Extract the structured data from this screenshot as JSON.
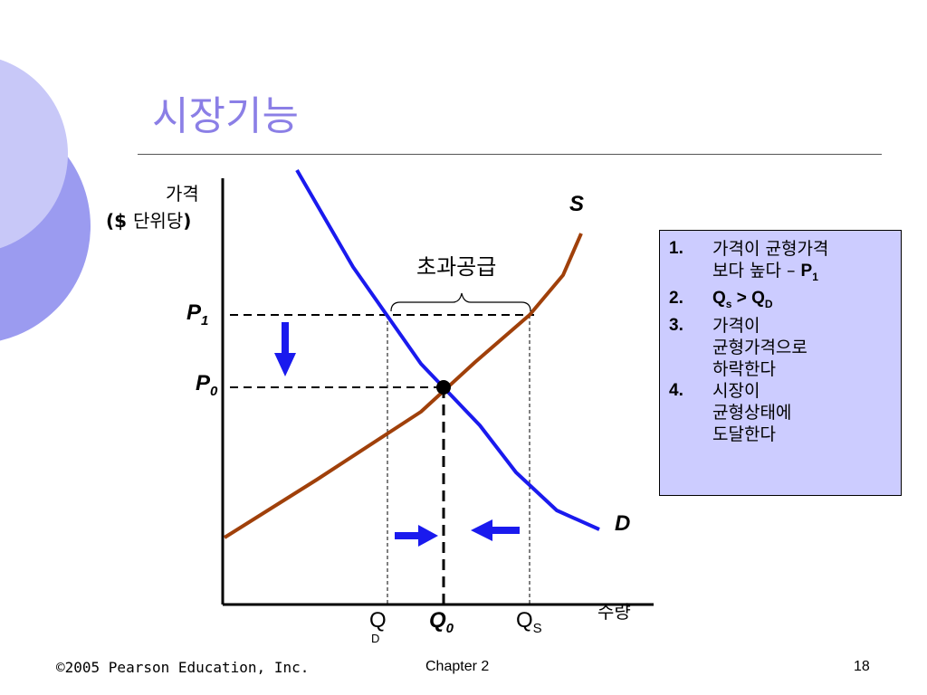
{
  "slide": {
    "title": "시장기능",
    "footer_left": "©2005 Pearson Education, Inc.",
    "footer_center": "Chapter 2",
    "footer_right": "18"
  },
  "diagram": {
    "y_axis_label_line1": "가격",
    "y_axis_label_open": "($ ",
    "y_axis_label_unit": "단위당",
    "y_axis_label_close": ")",
    "x_axis_label": "수량",
    "supply_label": "S",
    "demand_label": "D",
    "price_high_label": "P",
    "price_high_sub": "1",
    "price_eq_label": "P",
    "price_eq_sub": "0",
    "excess_supply_label": "초과공급",
    "qd_label": "Q",
    "qd_sub": "D",
    "q0_label": "Q",
    "q0_sub": "0",
    "qs_label": "Q",
    "qs_sub": "S",
    "colors": {
      "demand": "#1a1aee",
      "supply": "#a0400a",
      "arrows": "#1a1aee",
      "box_bg": "#ccccff",
      "title": "#8b7fe6"
    }
  },
  "steps": [
    {
      "num": "1.",
      "lines": [
        "가격이 균형가격",
        "보다 높다 – "
      ],
      "tail": "P",
      "tail_sub": "1"
    },
    {
      "num": "2.",
      "q_s": "Q",
      "q_s_sub": "s",
      "op": " > ",
      "q_d": "Q",
      "q_d_sub": "D"
    },
    {
      "num": "3.",
      "lines": [
        "가격이",
        "균형가격으로",
        "하락한다"
      ]
    },
    {
      "num": "4.",
      "lines": [
        "시장이",
        "균형상태에",
        "도달한다"
      ]
    }
  ]
}
